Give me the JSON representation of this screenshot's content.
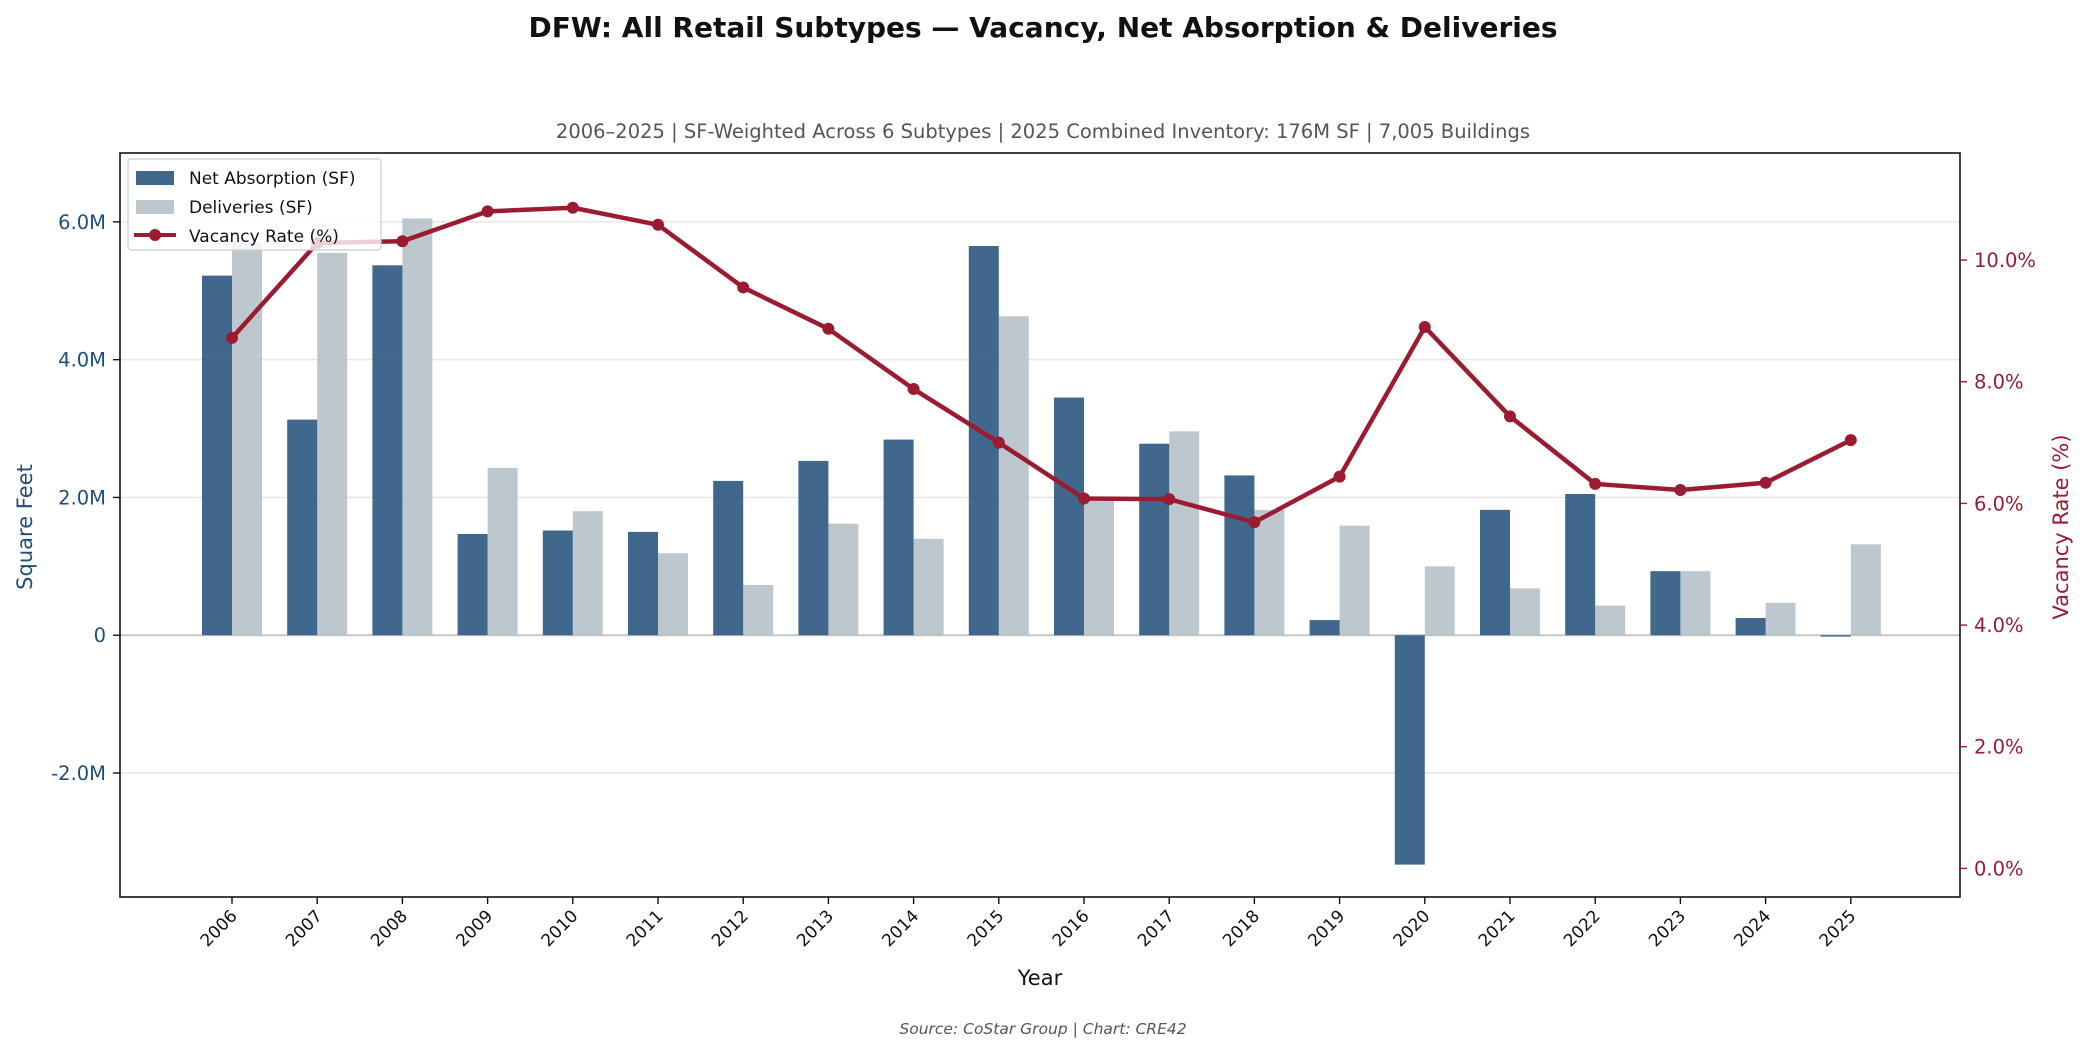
{
  "title": "DFW: All Retail Subtypes — Vacancy, Net Absorption & Deliveries",
  "subtitle": "2006–2025  |  SF-Weighted Across 6 Subtypes  |  2025 Combined Inventory: 176M SF  |  7,005 Buildings",
  "source": "Source: CoStar Group  |  Chart: CRE42",
  "colors": {
    "absorption": "#1f4e79",
    "deliveries": "#b0bec5",
    "vacancy": "#9b1b30"
  },
  "chart_data": {
    "type": "bar",
    "categories": [
      "2006",
      "2007",
      "2008",
      "2009",
      "2010",
      "2011",
      "2012",
      "2013",
      "2014",
      "2015",
      "2016",
      "2017",
      "2018",
      "2019",
      "2020",
      "2021",
      "2022",
      "2023",
      "2024",
      "2025"
    ],
    "series": [
      {
        "name": "Net Absorption (SF)",
        "kind": "bar",
        "axis": "left",
        "values": [
          5220000,
          3130000,
          5370000,
          1470000,
          1520000,
          1500000,
          2240000,
          2530000,
          2840000,
          5650000,
          3450000,
          2780000,
          2320000,
          220000,
          -3330000,
          1820000,
          2050000,
          930000,
          250000,
          -20000
        ]
      },
      {
        "name": "Deliveries (SF)",
        "kind": "bar",
        "axis": "left",
        "values": [
          5700000,
          5550000,
          6050000,
          2430000,
          1800000,
          1190000,
          730000,
          1620000,
          1400000,
          4630000,
          2010000,
          2960000,
          1820000,
          1590000,
          1000000,
          680000,
          430000,
          930000,
          470000,
          1320000
        ]
      },
      {
        "name": "Vacancy Rate (%)",
        "kind": "line",
        "axis": "right",
        "values": [
          8.72,
          10.28,
          10.31,
          10.8,
          10.86,
          10.58,
          9.55,
          8.87,
          7.88,
          7.0,
          6.08,
          6.07,
          5.69,
          6.44,
          8.9,
          7.43,
          6.32,
          6.22,
          6.34,
          7.04
        ]
      }
    ],
    "xlabel": "Year",
    "ylabel": "Square Feet",
    "y2label": "Vacancy Rate (%)",
    "ylim": [
      -3800000,
      7000000
    ],
    "y2lim": [
      -0.47,
      11.76
    ],
    "yticks": [
      {
        "value": -2000000,
        "label": "-2.0M"
      },
      {
        "value": 0,
        "label": "0"
      },
      {
        "value": 2000000,
        "label": "2.0M"
      },
      {
        "value": 4000000,
        "label": "4.0M"
      },
      {
        "value": 6000000,
        "label": "6.0M"
      }
    ],
    "y2ticks": [
      {
        "value": 0,
        "label": "0.0%"
      },
      {
        "value": 2,
        "label": "2.0%"
      },
      {
        "value": 4,
        "label": "4.0%"
      },
      {
        "value": 6,
        "label": "6.0%"
      },
      {
        "value": 8,
        "label": "8.0%"
      },
      {
        "value": 10,
        "label": "10.0%"
      }
    ],
    "grid": true,
    "legend": "top-left"
  }
}
